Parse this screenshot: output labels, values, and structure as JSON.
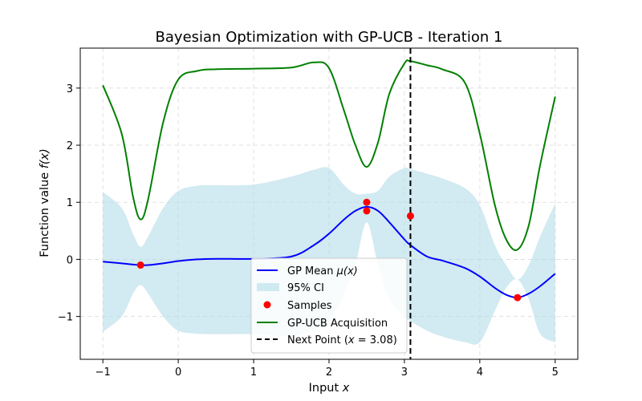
{
  "chart_data": {
    "type": "line",
    "title": "Bayesian Optimization with GP-UCB - Iteration 1",
    "xlabel": "Input ",
    "xlabel_var": "x",
    "ylabel": "Function value ",
    "ylabel_var": "f(x)",
    "xlim": [
      -1.3,
      5.3
    ],
    "ylim": [
      -1.75,
      3.7
    ],
    "xticks": [
      -1,
      0,
      1,
      2,
      3,
      4,
      5
    ],
    "xtick_labels": [
      "−1",
      "0",
      "1",
      "2",
      "3",
      "4",
      "5"
    ],
    "yticks": [
      -1,
      0,
      1,
      2,
      3
    ],
    "ytick_labels": [
      "−1",
      "0",
      "1",
      "2",
      "3"
    ],
    "grid": true,
    "legend_position": "bottom-center",
    "colors": {
      "mean": "#0000ff",
      "ci": "#add8e6",
      "samples": "#ff0000",
      "ucb": "#008000",
      "next_point": "#000000"
    },
    "x": [
      -1.0,
      -0.75,
      -0.6,
      -0.5,
      -0.4,
      -0.2,
      0.0,
      0.25,
      0.5,
      1.0,
      1.5,
      1.8,
      2.0,
      2.2,
      2.35,
      2.5,
      2.65,
      2.8,
      3.0,
      3.08,
      3.3,
      3.5,
      3.8,
      4.0,
      4.2,
      4.35,
      4.5,
      4.65,
      4.8,
      5.0
    ],
    "series": [
      {
        "name": "GP Mean μ(x)",
        "name_text": "GP Mean ",
        "name_var": "μ(x)",
        "values": [
          -0.04,
          -0.07,
          -0.09,
          -0.1,
          -0.1,
          -0.07,
          -0.03,
          0.0,
          0.01,
          0.01,
          0.05,
          0.25,
          0.45,
          0.7,
          0.85,
          0.92,
          0.85,
          0.65,
          0.35,
          0.25,
          0.05,
          -0.02,
          -0.15,
          -0.3,
          -0.5,
          -0.62,
          -0.67,
          -0.6,
          -0.47,
          -0.25
        ]
      },
      {
        "name": "95% CI",
        "lower": [
          -1.27,
          -1.0,
          -0.6,
          -0.45,
          -0.6,
          -1.0,
          -1.25,
          -1.3,
          -1.31,
          -1.31,
          -1.35,
          -1.22,
          -1.1,
          -0.6,
          -0.1,
          0.65,
          -0.1,
          -0.7,
          -1.0,
          -1.08,
          -1.25,
          -1.35,
          -1.45,
          -1.45,
          -0.9,
          -0.5,
          -0.35,
          -0.7,
          -1.3,
          -1.45
        ],
        "upper": [
          1.18,
          0.9,
          0.45,
          0.22,
          0.4,
          0.9,
          1.2,
          1.29,
          1.3,
          1.31,
          1.45,
          1.57,
          1.6,
          1.3,
          1.15,
          1.15,
          1.2,
          1.45,
          1.6,
          1.58,
          1.5,
          1.42,
          1.25,
          0.95,
          0.25,
          -0.1,
          -0.35,
          -0.1,
          0.4,
          0.98
        ]
      },
      {
        "name": "GP-UCB Acquisition",
        "values": [
          3.05,
          2.2,
          1.1,
          0.7,
          1.05,
          2.4,
          3.15,
          3.3,
          3.33,
          3.34,
          3.36,
          3.45,
          3.35,
          2.6,
          2.0,
          1.62,
          2.05,
          2.9,
          3.43,
          3.47,
          3.4,
          3.33,
          3.1,
          2.2,
          0.95,
          0.35,
          0.17,
          0.6,
          1.65,
          2.85
        ]
      }
    ],
    "samples": {
      "name": "Samples",
      "x": [
        -0.5,
        2.5,
        2.5,
        3.08,
        4.5
      ],
      "y": [
        -0.1,
        1.0,
        0.85,
        0.76,
        -0.67
      ]
    },
    "next_point": {
      "name": "Next Point (x = 3.08)",
      "name_text": "Next Point (",
      "name_var": "x",
      "name_rest": " = 3.08)",
      "x": 3.08
    }
  }
}
